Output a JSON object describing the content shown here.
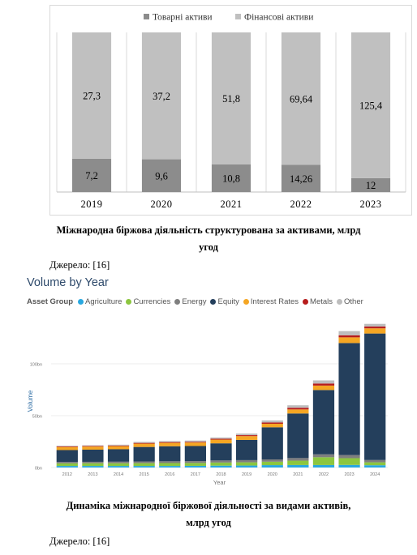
{
  "figure1": {
    "caption_line1": "Міжнародна біржова діяльність структурована за активами, млрд",
    "caption_line2": "угод",
    "source": "Джерело: [16]"
  },
  "figure2": {
    "caption_line1": "Динаміка міжнародної біржової діяльності за видами активів,",
    "caption_line2": "млрд угод",
    "source": "Джерело: [16]"
  },
  "chart_data": [
    {
      "type": "bar",
      "stacked": true,
      "categories": [
        "2019",
        "2020",
        "2021",
        "2022",
        "2023"
      ],
      "series": [
        {
          "name": "Товарні активи",
          "values": [
            7.2,
            9.6,
            10.8,
            14.26,
            12
          ],
          "labels": [
            "7,2",
            "9,6",
            "10,8",
            "14,26",
            "12"
          ],
          "color": "#8c8c8c"
        },
        {
          "name": "Фінансові активи",
          "values": [
            27.3,
            37.2,
            51.8,
            69.64,
            125.4
          ],
          "labels": [
            "27,3",
            "37,2",
            "51,8",
            "69,64",
            "125,4"
          ],
          "color": "#c0c0c0"
        }
      ],
      "normalized": true,
      "legend": "top",
      "grid": false
    },
    {
      "type": "bar",
      "stacked": true,
      "title": "Volume by Year",
      "legend_title": "Asset Group",
      "xlabel": "Year",
      "ylabel": "Volume",
      "categories": [
        "2012",
        "2013",
        "2014",
        "2015",
        "2016",
        "2017",
        "2018",
        "2019",
        "2020",
        "2021",
        "2022",
        "2023",
        "2024"
      ],
      "yticks": [
        "0bn",
        "50bn",
        "100bn"
      ],
      "ylim": [
        0,
        140
      ],
      "series": [
        {
          "name": "Agriculture",
          "color": "#29a8e0",
          "values": [
            1.5,
            1.5,
            1.5,
            1.5,
            1.5,
            1.6,
            1.8,
            1.9,
            2.3,
            2.4,
            2.4,
            2.5,
            2.2
          ]
        },
        {
          "name": "Currencies",
          "color": "#8cc63f",
          "values": [
            2.5,
            2.6,
            2.6,
            2.7,
            2.8,
            2.8,
            3.0,
            3.1,
            3.3,
            4.2,
            7.5,
            6.5,
            2.8
          ]
        },
        {
          "name": "Energy",
          "color": "#7f7f7f",
          "values": [
            1.3,
            1.4,
            1.5,
            1.6,
            1.7,
            1.8,
            2.0,
            2.1,
            2.2,
            2.5,
            2.8,
            3.0,
            2.2
          ]
        },
        {
          "name": "Equity",
          "color": "#243f5c",
          "values": [
            11.5,
            11.7,
            12.0,
            14.0,
            14.5,
            14.5,
            16.5,
            19.5,
            31.0,
            43.0,
            62.0,
            108.0,
            122.0
          ]
        },
        {
          "name": "Interest Rates",
          "color": "#f5a623",
          "values": [
            3.0,
            3.0,
            3.0,
            3.2,
            3.3,
            3.4,
            3.6,
            3.7,
            3.4,
            3.9,
            4.3,
            5.5,
            5.0
          ]
        },
        {
          "name": "Metals",
          "color": "#b71c1c",
          "values": [
            0.6,
            0.6,
            0.6,
            0.7,
            0.7,
            0.7,
            0.8,
            0.9,
            1.2,
            1.6,
            2.0,
            2.0,
            1.7
          ]
        },
        {
          "name": "Other",
          "color": "#bdbdbd",
          "values": [
            0.6,
            0.6,
            0.8,
            1.0,
            1.0,
            1.2,
            1.2,
            1.5,
            2.0,
            2.4,
            3.0,
            4.0,
            2.6
          ]
        }
      ],
      "legend": "top",
      "grid": true
    }
  ]
}
